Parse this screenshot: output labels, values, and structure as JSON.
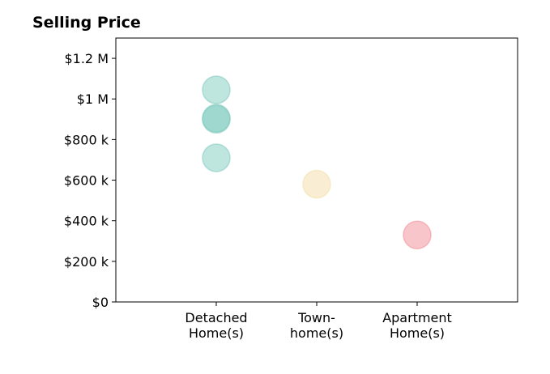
{
  "chart_data": {
    "type": "scatter",
    "title": "Selling Price",
    "xlabel": "",
    "ylabel": "",
    "categories": [
      [
        "Detached",
        "Home(s)"
      ],
      [
        "Town-",
        "home(s)"
      ],
      [
        "Apartment",
        "Home(s)"
      ]
    ],
    "ylim": [
      0,
      1300000
    ],
    "yticks": [
      0,
      200000,
      400000,
      600000,
      800000,
      1000000,
      1200000
    ],
    "ytick_labels": [
      "$0",
      "$200 k",
      "$400 k",
      "$600 k",
      "$800 k",
      "$1 M",
      "$1.2 M"
    ],
    "grid": false,
    "points": [
      {
        "category": 0,
        "y": 1045000,
        "color": "#7fcbbf"
      },
      {
        "category": 0,
        "y": 905000,
        "color": "#7fcbbf"
      },
      {
        "category": 0,
        "y": 900000,
        "color": "#7fcbbf"
      },
      {
        "category": 0,
        "y": 710000,
        "color": "#7fcbbf"
      },
      {
        "category": 1,
        "y": 580000,
        "color": "#f3dea8"
      },
      {
        "category": 2,
        "y": 330000,
        "color": "#f28e96"
      }
    ]
  }
}
